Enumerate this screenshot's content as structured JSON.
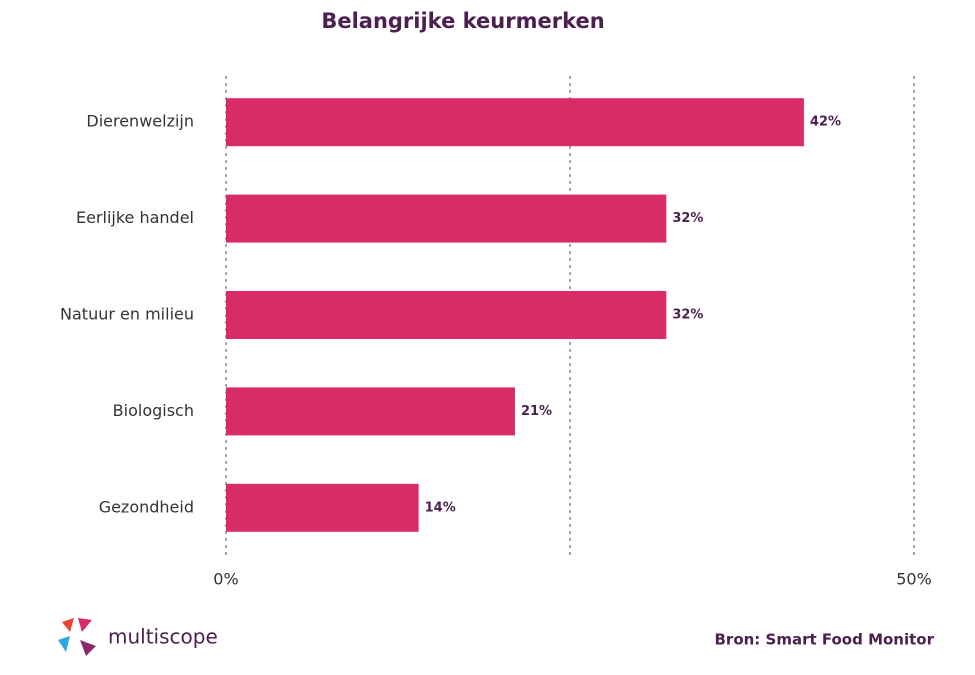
{
  "chart_data": {
    "type": "barh",
    "title": "Belangrijke keurmerken",
    "categories": [
      "Dierenwelzijn",
      "Eerlijke handel",
      "Natuur en milieu",
      "Biologisch",
      "Gezondheid"
    ],
    "values": [
      42,
      32,
      32,
      21,
      14
    ],
    "value_labels": [
      "42%",
      "32%",
      "32%",
      "21%",
      "14%"
    ],
    "color": "#d92b66",
    "xlim": [
      0,
      50
    ],
    "xticks": [
      {
        "value": 0,
        "label": "0%"
      },
      {
        "value": 25,
        "label": null
      },
      {
        "value": 50,
        "label": "50%"
      }
    ],
    "grid": true
  },
  "footer": {
    "logo_text": "multiscope",
    "source": "Bron: Smart Food Monitor"
  }
}
